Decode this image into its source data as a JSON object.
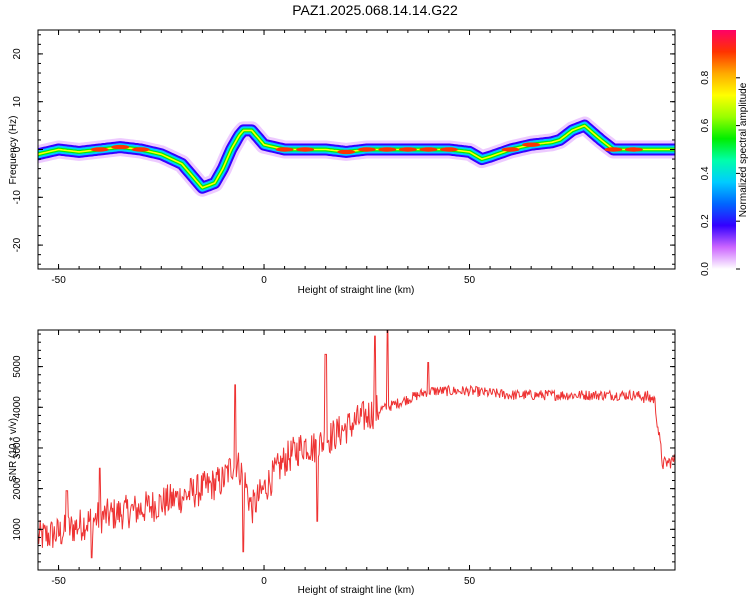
{
  "title": "PAZ1.2025.068.14.14.G22",
  "chart_data": [
    {
      "type": "heatmap",
      "xlabel": "Height of straight line (km)",
      "ylabel": "Frequency (Hz)",
      "xlim": [
        -55,
        100
      ],
      "ylim": [
        -25,
        25
      ],
      "xticks": [
        -50,
        0,
        50
      ],
      "yticks": [
        -20,
        -10,
        0,
        10,
        20
      ],
      "colorbar": {
        "label": "Normalized spectral amplitude",
        "range": [
          0,
          1
        ],
        "ticks": [
          "0.0",
          "0.2",
          "0.4",
          "0.6",
          "0.8"
        ],
        "colors": [
          "#ffffff",
          "#cc66ff",
          "#3300ff",
          "#0066ff",
          "#00ccff",
          "#00ffaa",
          "#00ee00",
          "#99ff00",
          "#ffff00",
          "#ffaa00",
          "#ff3300",
          "#ff0066"
        ]
      },
      "frequency_track": {
        "x": [
          -55,
          -50,
          -45,
          -40,
          -35,
          -30,
          -25,
          -20,
          -17,
          -15,
          -12,
          -10,
          -8,
          -6,
          -5,
          -3,
          0,
          5,
          10,
          15,
          20,
          25,
          30,
          35,
          40,
          45,
          50,
          53,
          55,
          60,
          65,
          70,
          72,
          75,
          78,
          82,
          85,
          90,
          95,
          100
        ],
        "y": [
          -1,
          0,
          -0.5,
          0,
          0.5,
          0,
          -1,
          -3,
          -6,
          -8,
          -7,
          -4,
          0,
          3,
          4,
          4,
          1,
          0,
          0,
          0,
          -0.5,
          0,
          0,
          0,
          0,
          0,
          -0.5,
          -2,
          -1.5,
          0,
          1,
          1.5,
          2,
          4,
          5,
          2,
          0,
          0,
          0,
          0
        ],
        "peak_x": [
          -40,
          -35,
          -30,
          5,
          10,
          20,
          25,
          30,
          35,
          40,
          45,
          60,
          65,
          85,
          90
        ]
      }
    },
    {
      "type": "line",
      "xlabel": "Height of straight line (km)",
      "ylabel": "SNR (10 * v/v)",
      "xlim": [
        -55,
        100
      ],
      "ylim": [
        0,
        5900
      ],
      "xticks": [
        -50,
        0,
        50
      ],
      "yticks": [
        1000,
        2000,
        3000,
        4000,
        5000
      ],
      "color": "#ee3333",
      "series": [
        {
          "x": [
            -55,
            -50,
            -45,
            -40,
            -35,
            -30,
            -25,
            -20,
            -15,
            -10,
            -7,
            -5,
            -3,
            0,
            5,
            10,
            12,
            15,
            20,
            25,
            27,
            30,
            35,
            40,
            50,
            60,
            70,
            80,
            90,
            93,
            95,
            97,
            100
          ],
          "y": [
            800,
            900,
            1100,
            1300,
            1400,
            1500,
            1650,
            1800,
            2000,
            2200,
            2700,
            2300,
            1500,
            2000,
            2700,
            3100,
            3000,
            3200,
            3500,
            3800,
            3900,
            4000,
            4200,
            4400,
            4400,
            4300,
            4300,
            4300,
            4300,
            4250,
            4200,
            2600,
            2700
          ]
        }
      ],
      "spikes": {
        "x": [
          -48,
          -42,
          -40,
          -7,
          -5,
          13,
          15,
          27,
          30,
          40
        ],
        "y": [
          1950,
          300,
          2500,
          4550,
          450,
          1200,
          5300,
          5750,
          5900,
          5100
        ]
      }
    }
  ]
}
